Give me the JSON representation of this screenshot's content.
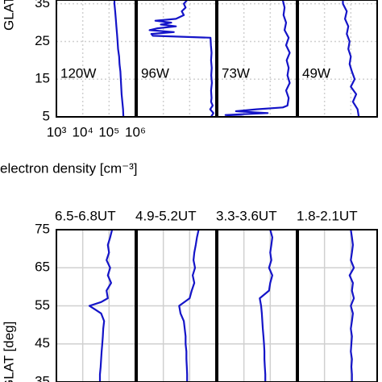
{
  "chart_data": [
    {
      "type": "line",
      "ylabel": "GLAT [deg]",
      "xlabel": "electron density  [cm⁻³]",
      "xscale": "log",
      "xlim": [
        1000,
        1000000
      ],
      "xticks": [
        {
          "value": 1000,
          "label": "10³"
        },
        {
          "value": 10000,
          "label": "10⁴"
        },
        {
          "value": 100000,
          "label": "10⁵"
        },
        {
          "value": 1000000,
          "label": "10⁶"
        }
      ],
      "ylim": [
        5,
        36
      ],
      "yticks": [
        35,
        25,
        15,
        5
      ],
      "grid": true,
      "color": "#1414c8",
      "panels": [
        {
          "label": "120W",
          "glat": [
            5,
            7,
            9,
            11,
            13,
            15,
            17,
            19,
            21,
            23,
            25,
            27,
            29,
            31,
            33,
            35,
            36
          ],
          "density": [
            350000,
            340000,
            320000,
            300000,
            290000,
            280000,
            270000,
            250000,
            240000,
            220000,
            210000,
            200000,
            190000,
            180000,
            170000,
            160000,
            160000
          ]
        },
        {
          "label": "96W",
          "glat": [
            5,
            6,
            7,
            8,
            9,
            10,
            12,
            14,
            16,
            18,
            20,
            22,
            24,
            26,
            26.5,
            27,
            27.5,
            28,
            28.5,
            29,
            29.5,
            30,
            30.5,
            31,
            32,
            33,
            34,
            35,
            36
          ],
          "density": [
            650000,
            800000,
            600000,
            750000,
            650000,
            680000,
            650000,
            700000,
            660000,
            690000,
            650000,
            680000,
            640000,
            620000,
            4000,
            3500,
            25000,
            3000,
            6000,
            30000,
            8000,
            20000,
            5000,
            30000,
            60000,
            50000,
            70000,
            60000,
            80000
          ]
        },
        {
          "label": "73W",
          "glat": [
            5,
            5.5,
            6,
            6.5,
            7,
            7.5,
            8,
            10,
            12,
            14,
            16,
            18,
            20,
            22,
            24,
            26,
            28,
            30,
            32,
            34,
            36
          ],
          "density": [
            10000,
            2000,
            80000,
            5000,
            30000,
            300000,
            450000,
            500000,
            400000,
            550000,
            450000,
            500000,
            420000,
            550000,
            400000,
            500000,
            350000,
            400000,
            320000,
            350000,
            300000
          ]
        },
        {
          "label": "49W",
          "glat": [
            5,
            7,
            9,
            11,
            13,
            15,
            17,
            19,
            21,
            23,
            25,
            27,
            29,
            31,
            33,
            35,
            36
          ],
          "density": [
            200000,
            180000,
            120000,
            160000,
            100000,
            140000,
            110000,
            90000,
            100000,
            80000,
            90000,
            70000,
            80000,
            60000,
            70000,
            50000,
            50000
          ]
        }
      ]
    },
    {
      "type": "line",
      "ylabel": "GLAT [deg]",
      "xscale": "log",
      "xlim": [
        1000,
        1000000
      ],
      "ylim": [
        35,
        75
      ],
      "yticks": [
        75,
        65,
        55,
        45,
        35
      ],
      "grid": true,
      "color": "#1414c8",
      "panels": [
        {
          "label": "6.5-6.8UT",
          "glat": [
            35,
            37,
            39,
            41,
            43,
            45,
            47,
            49,
            51,
            53,
            54,
            55,
            56,
            57,
            59,
            61,
            63,
            65,
            67,
            69,
            71,
            73,
            75
          ],
          "density": [
            45000,
            45000,
            48000,
            50000,
            52000,
            55000,
            58000,
            60000,
            65000,
            50000,
            30000,
            18000,
            50000,
            90000,
            80000,
            120000,
            90000,
            110000,
            80000,
            100000,
            90000,
            110000,
            130000
          ]
        },
        {
          "label": "4.9-5.2UT",
          "glat": [
            35,
            37,
            39,
            41,
            43,
            45,
            47,
            49,
            51,
            53,
            55,
            57,
            59,
            61,
            63,
            65,
            67,
            69,
            71,
            73,
            75
          ],
          "density": [
            80000,
            80000,
            78000,
            75000,
            75000,
            70000,
            70000,
            65000,
            60000,
            45000,
            40000,
            100000,
            120000,
            150000,
            130000,
            160000,
            140000,
            150000,
            170000,
            190000,
            220000
          ]
        },
        {
          "label": "3.3-3.6UT",
          "glat": [
            35,
            37,
            39,
            41,
            43,
            45,
            47,
            49,
            51,
            53,
            55,
            57,
            59,
            61,
            63,
            65,
            67,
            69,
            71,
            73,
            75
          ],
          "density": [
            65000,
            65000,
            62000,
            60000,
            60000,
            58000,
            55000,
            52000,
            50000,
            48000,
            45000,
            40000,
            90000,
            100000,
            120000,
            90000,
            110000,
            100000,
            110000,
            120000,
            100000
          ]
        },
        {
          "label": "1.8-2.1UT",
          "glat": [
            35,
            37,
            39,
            41,
            43,
            45,
            47,
            49,
            51,
            53,
            55,
            57,
            59,
            61,
            63,
            65,
            67,
            69,
            71,
            73,
            75
          ],
          "density": [
            110000,
            110000,
            105000,
            110000,
            100000,
            105000,
            110000,
            100000,
            110000,
            120000,
            100000,
            130000,
            110000,
            120000,
            90000,
            130000,
            100000,
            110000,
            120000,
            110000,
            100000
          ]
        }
      ]
    }
  ]
}
